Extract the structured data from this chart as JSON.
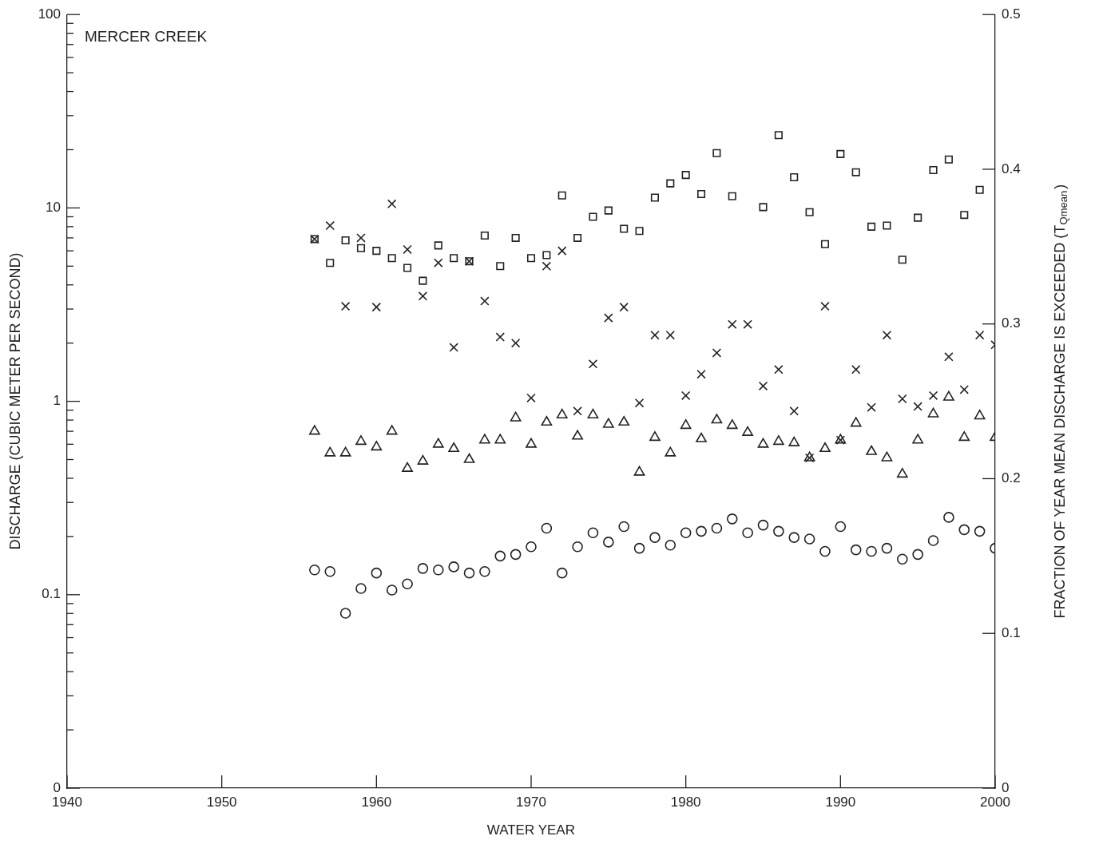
{
  "chart_data": {
    "type": "scatter",
    "title": "MERCER CREEK",
    "xlabel": "WATER YEAR",
    "ylabel": "DISCHARGE (CUBIC METER PER SECOND)",
    "y2label": "FRACTION OF YEAR MEAN DISCHARGE IS EXCEEDED (T$_{Qmean}$)",
    "x": [
      1956,
      1957,
      1958,
      1959,
      1960,
      1961,
      1962,
      1963,
      1964,
      1965,
      1966,
      1967,
      1968,
      1969,
      1970,
      1971,
      1972,
      1973,
      1974,
      1975,
      1976,
      1977,
      1978,
      1979,
      1980,
      1981,
      1982,
      1983,
      1984,
      1985,
      1986,
      1987,
      1988,
      1989,
      1990,
      1991,
      1992,
      1993,
      1994,
      1995,
      1996,
      1997,
      1998,
      1999,
      2000
    ],
    "series": [
      {
        "marker": "square",
        "color": "#222222",
        "values": [
          6.9,
          5.2,
          6.8,
          6.2,
          6.0,
          5.5,
          4.9,
          4.2,
          6.4,
          5.5,
          5.3,
          7.2,
          5.0,
          7.0,
          5.5,
          5.7,
          11.6,
          7.0,
          9.0,
          9.7,
          7.8,
          7.6,
          11.3,
          13.4,
          14.8,
          11.8,
          19.2,
          11.5,
          null,
          10.1,
          23.8,
          14.4,
          9.5,
          6.5,
          19.0,
          15.3,
          8.0,
          8.1,
          5.4,
          8.9,
          15.7,
          17.8,
          9.2,
          12.4,
          null
        ]
      },
      {
        "marker": "cross",
        "color": "#222222",
        "values": [
          6.9,
          8.1,
          3.1,
          7.0,
          3.07,
          10.5,
          6.1,
          3.5,
          5.2,
          1.9,
          5.3,
          3.3,
          2.15,
          2.0,
          1.04,
          5.0,
          6.0,
          0.89,
          1.56,
          2.7,
          3.07,
          0.98,
          2.2,
          2.2,
          1.07,
          1.38,
          1.78,
          2.5,
          2.5,
          1.2,
          1.46,
          0.89,
          0.51,
          3.1,
          0.63,
          1.46,
          0.93,
          2.2,
          1.03,
          0.94,
          1.07,
          1.7,
          1.15,
          2.2,
          1.96
        ]
      },
      {
        "marker": "triangle",
        "color": "#222222",
        "values": [
          0.7,
          0.54,
          0.54,
          0.62,
          0.58,
          0.7,
          0.45,
          0.49,
          0.6,
          0.57,
          0.5,
          0.63,
          0.63,
          0.82,
          0.6,
          0.78,
          0.85,
          0.66,
          0.85,
          0.76,
          0.78,
          0.43,
          0.65,
          0.54,
          0.75,
          0.64,
          0.8,
          0.75,
          0.69,
          0.6,
          0.62,
          0.61,
          0.51,
          0.57,
          0.63,
          0.77,
          0.55,
          0.51,
          0.42,
          0.63,
          0.86,
          1.05,
          0.65,
          0.84,
          0.65
        ]
      },
      {
        "marker": "circle",
        "color": "#222222",
        "axis": "y2",
        "values": [
          0.141,
          0.14,
          0.113,
          0.129,
          0.139,
          0.128,
          0.132,
          0.142,
          0.141,
          0.143,
          0.139,
          0.14,
          0.15,
          0.151,
          0.156,
          0.168,
          0.139,
          0.156,
          0.165,
          0.159,
          0.169,
          0.155,
          0.162,
          0.157,
          0.165,
          0.166,
          0.168,
          0.174,
          0.165,
          0.17,
          0.166,
          0.162,
          0.161,
          0.153,
          0.169,
          0.154,
          0.153,
          0.155,
          0.148,
          0.151,
          0.16,
          0.175,
          0.167,
          0.166,
          0.155
        ]
      }
    ],
    "xlim": [
      1940,
      2000
    ],
    "xticks": [
      1940,
      1950,
      1960,
      1970,
      1980,
      1990,
      2000
    ],
    "log": "y",
    "ylim": [
      0.01,
      100
    ],
    "yticks": [
      {
        "value": 0.01,
        "label": "0"
      },
      {
        "value": 0.02,
        "label": null
      },
      {
        "value": 0.03,
        "label": null
      },
      {
        "value": 0.04,
        "label": null
      },
      {
        "value": 0.05,
        "label": null
      },
      {
        "value": 0.06,
        "label": null
      },
      {
        "value": 0.07,
        "label": null
      },
      {
        "value": 0.08,
        "label": null
      },
      {
        "value": 0.09,
        "label": null
      },
      0.1,
      {
        "value": 0.2,
        "label": null
      },
      {
        "value": 0.3,
        "label": null
      },
      {
        "value": 0.4,
        "label": null
      },
      {
        "value": 0.5,
        "label": null
      },
      {
        "value": 0.6,
        "label": null
      },
      {
        "value": 0.7,
        "label": null
      },
      {
        "value": 0.8,
        "label": null
      },
      {
        "value": 0.9,
        "label": null
      },
      1,
      {
        "value": 2,
        "label": null
      },
      {
        "value": 3,
        "label": null
      },
      {
        "value": 4,
        "label": null
      },
      {
        "value": 5,
        "label": null
      },
      {
        "value": 6,
        "label": null
      },
      {
        "value": 7,
        "label": null
      },
      {
        "value": 8,
        "label": null
      },
      {
        "value": 9,
        "label": null
      },
      10,
      {
        "value": 20,
        "label": null
      },
      {
        "value": 30,
        "label": null
      },
      {
        "value": 40,
        "label": null
      },
      {
        "value": 50,
        "label": null
      },
      {
        "value": 60,
        "label": null
      },
      {
        "value": 70,
        "label": null
      },
      {
        "value": 80,
        "label": null
      },
      {
        "value": 90,
        "label": null
      },
      100
    ],
    "y2lim": [
      0,
      0.5
    ],
    "y2ticks": [
      0,
      0.1,
      0.2,
      0.3,
      0.4,
      0.5
    ],
    "grid": false,
    "legend": false
  }
}
